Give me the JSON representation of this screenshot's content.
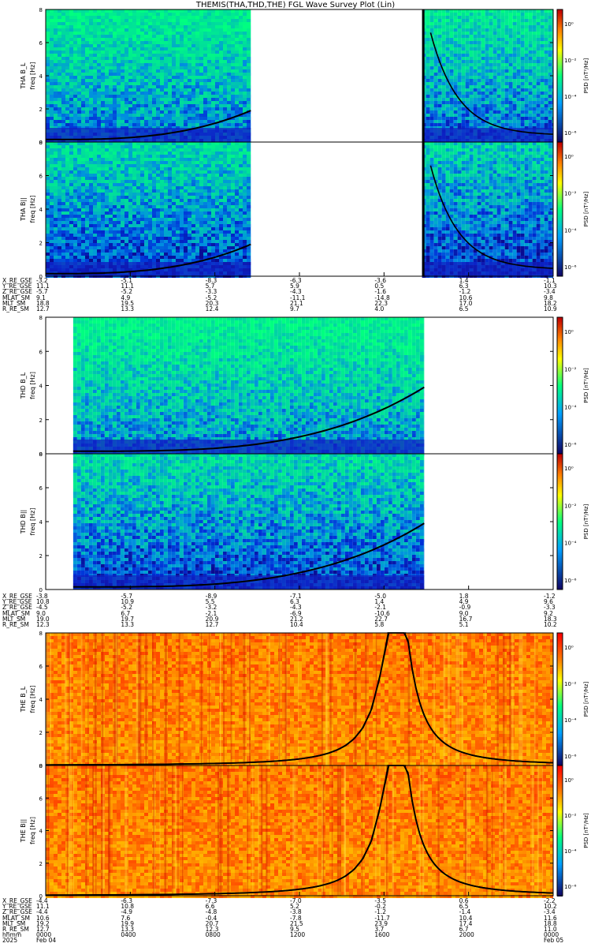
{
  "title": "THEMIS(THA,THD,THE) FGL Wave Survey Plot (Lin)",
  "colorbar_label": "PSD [nT²/Hz]",
  "colorbar_ticks": [
    "10⁰",
    "10⁻²",
    "10⁻⁴",
    "10⁻⁶"
  ],
  "freq_axis_label": "freq [Hz]",
  "freq_ticks": [
    "0",
    "2",
    "4",
    "6",
    "8"
  ],
  "chart_data": [
    {
      "type": "heatmap",
      "probe": "THA",
      "panels": [
        {
          "name": "THA B_L",
          "ylabel": "freq [Hz]",
          "ylim": [
            0,
            8
          ]
        },
        {
          "name": "THA B||",
          "ylabel": "freq [Hz]",
          "ylim": [
            0,
            8
          ]
        }
      ],
      "data_gap_hours": [
        [
          9.7,
          17.8
        ]
      ],
      "cyclotron_trace_end_hz": 1.9,
      "ephemeris": [
        {
          "label": "X_RE_GSE",
          "values": [
            "-3.2",
            "-5.1",
            "-8.3",
            "-6.3",
            "-3.6",
            "1.4",
            "-1.1"
          ]
        },
        {
          "label": "Y_RE_GSE",
          "values": [
            "11.1",
            "11.1",
            "5.7",
            "5.9",
            "0.5",
            "6.3",
            "10.3"
          ]
        },
        {
          "label": "Z_RE_GSE",
          "values": [
            "-5.7",
            "-5.2",
            "-3.3",
            "-4.3",
            "-1.6",
            "-1.2",
            "-3.4"
          ]
        },
        {
          "label": "MLAT_SM",
          "values": [
            "9.1",
            "4.9",
            "-5.2",
            "-11.1",
            "-14.8",
            "10.6",
            "9.8"
          ]
        },
        {
          "label": "MLT_SM",
          "values": [
            "18.8",
            "19.5",
            "20.3",
            "21.1",
            "22.3",
            "17.0",
            "18.2"
          ]
        },
        {
          "label": "R_RE_SM",
          "values": [
            "12.7",
            "13.3",
            "12.4",
            "9.7",
            "4.0",
            "6.5",
            "10.9"
          ]
        }
      ]
    },
    {
      "type": "heatmap",
      "probe": "THD",
      "panels": [
        {
          "name": "THD B_L",
          "ylabel": "freq [Hz]",
          "ylim": [
            0,
            8
          ]
        },
        {
          "name": "THD B||",
          "ylabel": "freq [Hz]",
          "ylim": [
            0,
            8
          ]
        }
      ],
      "data_coverage_hours": [
        1.3,
        17.9
      ],
      "cyclotron_trace_end_hz": 3.9,
      "ephemeris": [
        {
          "label": "X_RE_GSE",
          "values": [
            "-3.8",
            "-5.7",
            "-8.9",
            "-7.1",
            "-5.0",
            "1.8",
            "-1.2"
          ]
        },
        {
          "label": "Y_RE_GSE",
          "values": [
            "10.8",
            "10.9",
            "5.5",
            "6.3",
            "1.4",
            "4.9",
            "9.6"
          ]
        },
        {
          "label": "Z_RE_GSE",
          "values": [
            "-4.5",
            "-5.2",
            "-3.2",
            "-4.3",
            "-2.1",
            "-0.9",
            "-3.3"
          ]
        },
        {
          "label": "MLAT_SM",
          "values": [
            "9.0",
            "6.7",
            "-2.1",
            "-6.9",
            "-10.6",
            "9.0",
            "9.2"
          ]
        },
        {
          "label": "MLT_SM",
          "values": [
            "19.0",
            "19.7",
            "20.9",
            "21.2",
            "22.7",
            "16.7",
            "18.3"
          ]
        },
        {
          "label": "R_RE_SM",
          "values": [
            "12.3",
            "13.3",
            "12.7",
            "10.4",
            "5.8",
            "5.1",
            "10.2"
          ]
        }
      ]
    },
    {
      "type": "heatmap",
      "probe": "THE",
      "panels": [
        {
          "name": "THE B_L",
          "ylabel": "freq [Hz]",
          "ylim": [
            0,
            8
          ]
        },
        {
          "name": "THE B||",
          "ylabel": "freq [Hz]",
          "ylim": [
            0,
            8
          ]
        }
      ],
      "perigee_hour": 16.6,
      "ephemeris": [
        {
          "label": "X_RE_GSE",
          "values": [
            "-4.4",
            "-6.3",
            "-7.3",
            "-7.0",
            "-3.5",
            "0.6",
            "-2.2"
          ]
        },
        {
          "label": "Y_RE_GSE",
          "values": [
            "11.1",
            "10.8",
            "6.6",
            "5.2",
            "-0.2",
            "6.5",
            "10.2"
          ]
        },
        {
          "label": "Z_RE_GSE",
          "values": [
            "-4.4",
            "-4.9",
            "-4.8",
            "-3.8",
            "-1.2",
            "-1.4",
            "-3.4"
          ]
        },
        {
          "label": "MLAT_SM",
          "values": [
            "10.6",
            "7.6",
            "-0.4",
            "-7.8",
            "-11.7",
            "10.4",
            "11.6"
          ]
        },
        {
          "label": "MLT_SM",
          "values": [
            "19.2",
            "19.9",
            "20.7",
            "21.5",
            "23.9",
            "17.4",
            "18.8"
          ]
        },
        {
          "label": "R_RE_SM",
          "values": [
            "12.7",
            "13.3",
            "12.3",
            "9.5",
            "3.7",
            "6.7",
            "11.0"
          ]
        }
      ]
    }
  ],
  "time_axis": {
    "row_labels": [
      "hhmm",
      "2025"
    ],
    "hhmm": [
      "0000",
      "0400",
      "0800",
      "1200",
      "1600",
      "2000",
      "0000"
    ],
    "dates": [
      "Feb 04",
      "",
      "",
      "",
      "",
      "",
      "Feb 05"
    ]
  }
}
